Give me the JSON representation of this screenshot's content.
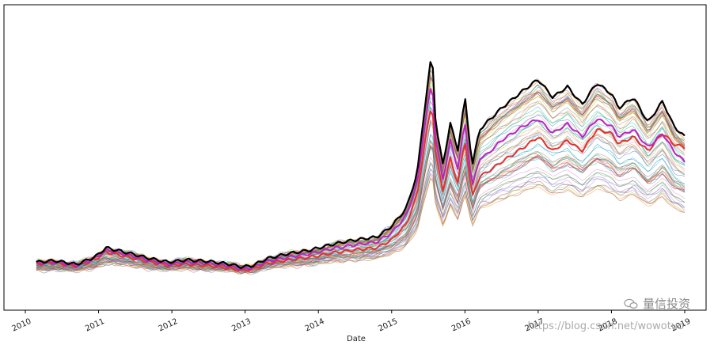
{
  "chart_data": {
    "type": "line",
    "xlabel": "Date",
    "ylabel": "",
    "x_ticks": [
      "2010",
      "2011",
      "2012",
      "2013",
      "2014",
      "2015",
      "2016",
      "2017",
      "2018",
      "2019"
    ],
    "xlim": [
      2010.0,
      2019.0
    ],
    "grid": false,
    "legend": "none",
    "highlighted_series": [
      {
        "color": "#000000",
        "x": [
          2010.15,
          2010.4,
          2010.7,
          2010.95,
          2011.1,
          2011.4,
          2011.7,
          2011.95,
          2012.2,
          2012.5,
          2012.8,
          2012.95,
          2013.1,
          2013.3,
          2013.6,
          2013.9,
          2014.2,
          2014.5,
          2014.8,
          2015.0,
          2015.2,
          2015.35,
          2015.45,
          2015.55,
          2015.6,
          2015.7,
          2015.8,
          2015.9,
          2016.0,
          2016.1,
          2016.2,
          2016.3,
          2016.5,
          2016.8,
          2017.0,
          2017.2,
          2017.4,
          2017.6,
          2017.8,
          2018.0,
          2018.1,
          2018.3,
          2018.5,
          2018.7,
          2018.85,
          2019.0
        ],
        "y": [
          1.05,
          1.07,
          1.02,
          1.12,
          1.25,
          1.18,
          1.1,
          1.05,
          1.08,
          1.06,
          1.02,
          0.98,
          1.0,
          1.1,
          1.17,
          1.22,
          1.3,
          1.36,
          1.4,
          1.55,
          1.8,
          2.3,
          3.2,
          4.0,
          3.0,
          2.4,
          3.0,
          2.6,
          3.35,
          2.4,
          2.9,
          3.0,
          3.2,
          3.45,
          3.6,
          3.35,
          3.5,
          3.25,
          3.55,
          3.4,
          3.2,
          3.35,
          3.0,
          3.3,
          2.95,
          2.8
        ]
      },
      {
        "color": "#c020c0",
        "x": [
          2010.15,
          2010.4,
          2010.7,
          2010.95,
          2011.1,
          2011.4,
          2011.7,
          2011.95,
          2012.2,
          2012.5,
          2012.8,
          2012.95,
          2013.1,
          2013.3,
          2013.6,
          2013.9,
          2014.2,
          2014.5,
          2014.8,
          2015.0,
          2015.2,
          2015.35,
          2015.45,
          2015.55,
          2015.6,
          2015.7,
          2015.8,
          2015.9,
          2016.0,
          2016.1,
          2016.2,
          2016.3,
          2016.5,
          2016.8,
          2017.0,
          2017.2,
          2017.4,
          2017.6,
          2017.8,
          2018.0,
          2018.1,
          2018.3,
          2018.5,
          2018.7,
          2018.85,
          2019.0
        ],
        "y": [
          1.03,
          1.05,
          1.0,
          1.1,
          1.22,
          1.15,
          1.07,
          1.02,
          1.05,
          1.03,
          0.99,
          0.95,
          0.97,
          1.06,
          1.12,
          1.17,
          1.24,
          1.29,
          1.33,
          1.46,
          1.7,
          2.15,
          2.95,
          3.6,
          2.75,
          2.2,
          2.75,
          2.35,
          3.0,
          2.1,
          2.5,
          2.55,
          2.75,
          2.95,
          3.05,
          2.85,
          2.98,
          2.8,
          3.05,
          2.95,
          2.8,
          2.9,
          2.65,
          2.85,
          2.6,
          2.45
        ]
      },
      {
        "color": "#e8302a",
        "x": [
          2010.15,
          2010.4,
          2010.7,
          2010.95,
          2011.1,
          2011.4,
          2011.7,
          2011.95,
          2012.2,
          2012.5,
          2012.8,
          2012.95,
          2013.1,
          2013.3,
          2013.6,
          2013.9,
          2014.2,
          2014.5,
          2014.8,
          2015.0,
          2015.2,
          2015.35,
          2015.45,
          2015.55,
          2015.6,
          2015.7,
          2015.8,
          2015.9,
          2016.0,
          2016.1,
          2016.2,
          2016.3,
          2016.5,
          2016.8,
          2017.0,
          2017.2,
          2017.4,
          2017.6,
          2017.8,
          2018.0,
          2018.1,
          2018.3,
          2018.5,
          2018.7,
          2018.85,
          2019.0
        ],
        "y": [
          1.02,
          1.04,
          0.99,
          1.08,
          1.19,
          1.12,
          1.05,
          1.0,
          1.02,
          1.0,
          0.96,
          0.93,
          0.95,
          1.03,
          1.08,
          1.12,
          1.18,
          1.22,
          1.25,
          1.36,
          1.58,
          2.0,
          2.7,
          3.3,
          2.55,
          2.05,
          2.5,
          2.15,
          2.75,
          1.95,
          2.25,
          2.3,
          2.45,
          2.65,
          2.8,
          2.6,
          2.75,
          2.6,
          2.9,
          2.85,
          2.7,
          2.8,
          2.6,
          2.85,
          2.7,
          2.65
        ]
      }
    ],
    "background_series": {
      "count": 60,
      "y_end_range": [
        0.7,
        3.3
      ],
      "y_peak_range": [
        1.8,
        4.3
      ],
      "colors": [
        "#1f77b4",
        "#ff7f0e",
        "#2ca02c",
        "#d62728",
        "#9467bd",
        "#8c564b",
        "#e377c2",
        "#7f7f7f",
        "#bcbd22",
        "#17becf"
      ]
    }
  },
  "watermark": {
    "brand": "量信投资",
    "url": "https://blog.csdn.net/wowotuo"
  }
}
